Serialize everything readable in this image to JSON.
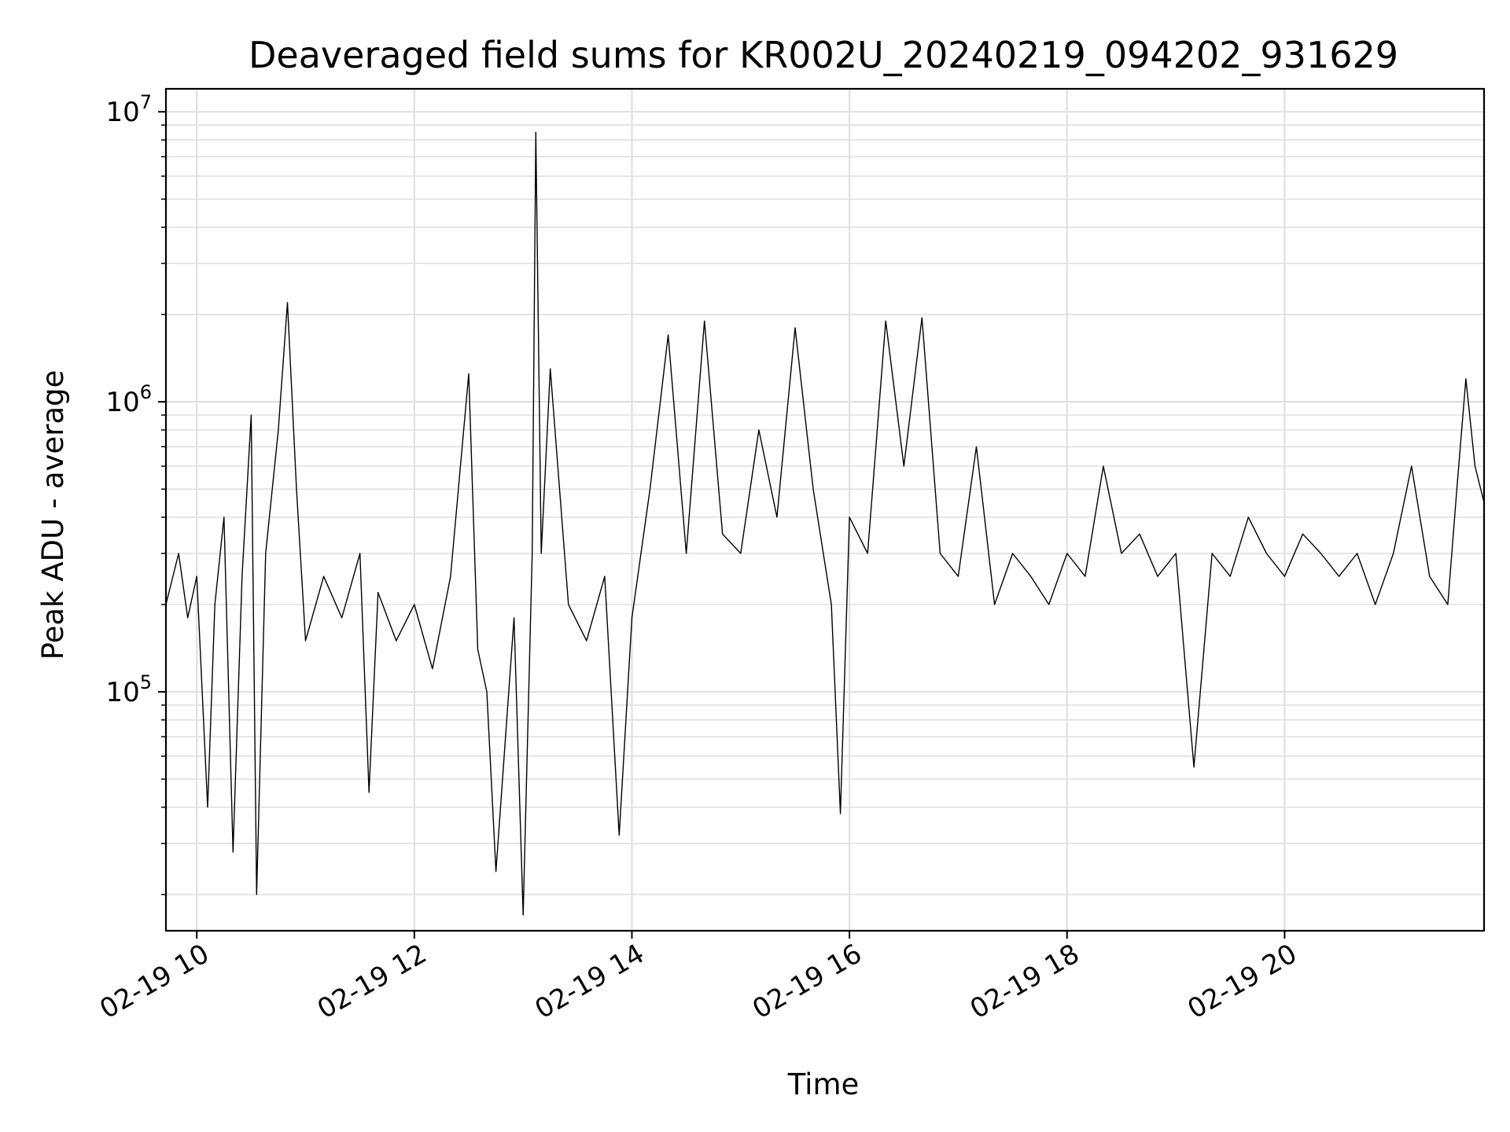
{
  "chart_data": {
    "type": "line",
    "title": "Deaveraged field sums for KR002U_20240219_094202_931629",
    "xlabel": "Time",
    "ylabel": "Peak ADU - average",
    "x_range": [
      "2024-02-19T09:43",
      "2024-02-19T21:50"
    ],
    "y_range": [
      15000,
      12000000
    ],
    "y_scale": "log",
    "grid": true,
    "legend": "none",
    "line_color": "#000000",
    "grid_color": "#e0e0e0",
    "x_ticks": [
      {
        "t": "2024-02-19T10:00",
        "label": "02-19 10"
      },
      {
        "t": "2024-02-19T12:00",
        "label": "02-19 12"
      },
      {
        "t": "2024-02-19T14:00",
        "label": "02-19 14"
      },
      {
        "t": "2024-02-19T16:00",
        "label": "02-19 16"
      },
      {
        "t": "2024-02-19T18:00",
        "label": "02-19 18"
      },
      {
        "t": "2024-02-19T20:00",
        "label": "02-19 20"
      }
    ],
    "y_ticks": [
      {
        "value": 100000,
        "base": "10",
        "exp": "5"
      },
      {
        "value": 1000000,
        "base": "10",
        "exp": "6"
      },
      {
        "value": 10000000,
        "base": "10",
        "exp": "7"
      }
    ],
    "series": [
      {
        "points": [
          [
            "2024-02-19T09:43",
            200000
          ],
          [
            "2024-02-19T09:50",
            300000
          ],
          [
            "2024-02-19T09:55",
            180000
          ],
          [
            "2024-02-19T10:00",
            250000
          ],
          [
            "2024-02-19T10:06",
            40000
          ],
          [
            "2024-02-19T10:10",
            200000
          ],
          [
            "2024-02-19T10:15",
            400000
          ],
          [
            "2024-02-19T10:20",
            28000
          ],
          [
            "2024-02-19T10:25",
            250000
          ],
          [
            "2024-02-19T10:30",
            900000
          ],
          [
            "2024-02-19T10:33",
            20000
          ],
          [
            "2024-02-19T10:38",
            300000
          ],
          [
            "2024-02-19T10:45",
            800000
          ],
          [
            "2024-02-19T10:50",
            2200000
          ],
          [
            "2024-02-19T10:55",
            500000
          ],
          [
            "2024-02-19T11:00",
            150000
          ],
          [
            "2024-02-19T11:10",
            250000
          ],
          [
            "2024-02-19T11:20",
            180000
          ],
          [
            "2024-02-19T11:30",
            300000
          ],
          [
            "2024-02-19T11:35",
            45000
          ],
          [
            "2024-02-19T11:40",
            220000
          ],
          [
            "2024-02-19T11:50",
            150000
          ],
          [
            "2024-02-19T12:00",
            200000
          ],
          [
            "2024-02-19T12:10",
            120000
          ],
          [
            "2024-02-19T12:20",
            250000
          ],
          [
            "2024-02-19T12:30",
            1250000
          ],
          [
            "2024-02-19T12:35",
            140000
          ],
          [
            "2024-02-19T12:40",
            100000
          ],
          [
            "2024-02-19T12:45",
            24000
          ],
          [
            "2024-02-19T12:55",
            180000
          ],
          [
            "2024-02-19T13:00",
            17000
          ],
          [
            "2024-02-19T13:05",
            300000
          ],
          [
            "2024-02-19T13:07",
            8500000
          ],
          [
            "2024-02-19T13:10",
            300000
          ],
          [
            "2024-02-19T13:15",
            1300000
          ],
          [
            "2024-02-19T13:25",
            200000
          ],
          [
            "2024-02-19T13:35",
            150000
          ],
          [
            "2024-02-19T13:45",
            250000
          ],
          [
            "2024-02-19T13:53",
            32000
          ],
          [
            "2024-02-19T14:00",
            180000
          ],
          [
            "2024-02-19T14:10",
            500000
          ],
          [
            "2024-02-19T14:20",
            1700000
          ],
          [
            "2024-02-19T14:30",
            300000
          ],
          [
            "2024-02-19T14:40",
            1900000
          ],
          [
            "2024-02-19T14:50",
            350000
          ],
          [
            "2024-02-19T15:00",
            300000
          ],
          [
            "2024-02-19T15:10",
            800000
          ],
          [
            "2024-02-19T15:20",
            400000
          ],
          [
            "2024-02-19T15:30",
            1800000
          ],
          [
            "2024-02-19T15:40",
            500000
          ],
          [
            "2024-02-19T15:50",
            200000
          ],
          [
            "2024-02-19T15:55",
            38000
          ],
          [
            "2024-02-19T16:00",
            400000
          ],
          [
            "2024-02-19T16:10",
            300000
          ],
          [
            "2024-02-19T16:20",
            1900000
          ],
          [
            "2024-02-19T16:30",
            600000
          ],
          [
            "2024-02-19T16:40",
            1950000
          ],
          [
            "2024-02-19T16:50",
            300000
          ],
          [
            "2024-02-19T17:00",
            250000
          ],
          [
            "2024-02-19T17:10",
            700000
          ],
          [
            "2024-02-19T17:20",
            200000
          ],
          [
            "2024-02-19T17:30",
            300000
          ],
          [
            "2024-02-19T17:40",
            250000
          ],
          [
            "2024-02-19T17:50",
            200000
          ],
          [
            "2024-02-19T18:00",
            300000
          ],
          [
            "2024-02-19T18:10",
            250000
          ],
          [
            "2024-02-19T18:20",
            600000
          ],
          [
            "2024-02-19T18:30",
            300000
          ],
          [
            "2024-02-19T18:40",
            350000
          ],
          [
            "2024-02-19T18:50",
            250000
          ],
          [
            "2024-02-19T19:00",
            300000
          ],
          [
            "2024-02-19T19:10",
            55000
          ],
          [
            "2024-02-19T19:20",
            300000
          ],
          [
            "2024-02-19T19:30",
            250000
          ],
          [
            "2024-02-19T19:40",
            400000
          ],
          [
            "2024-02-19T19:50",
            300000
          ],
          [
            "2024-02-19T20:00",
            250000
          ],
          [
            "2024-02-19T20:10",
            350000
          ],
          [
            "2024-02-19T20:20",
            300000
          ],
          [
            "2024-02-19T20:30",
            250000
          ],
          [
            "2024-02-19T20:40",
            300000
          ],
          [
            "2024-02-19T20:50",
            200000
          ],
          [
            "2024-02-19T21:00",
            300000
          ],
          [
            "2024-02-19T21:10",
            600000
          ],
          [
            "2024-02-19T21:20",
            250000
          ],
          [
            "2024-02-19T21:30",
            200000
          ],
          [
            "2024-02-19T21:35",
            500000
          ],
          [
            "2024-02-19T21:40",
            1200000
          ],
          [
            "2024-02-19T21:45",
            600000
          ],
          [
            "2024-02-19T21:50",
            450000
          ]
        ]
      }
    ]
  }
}
